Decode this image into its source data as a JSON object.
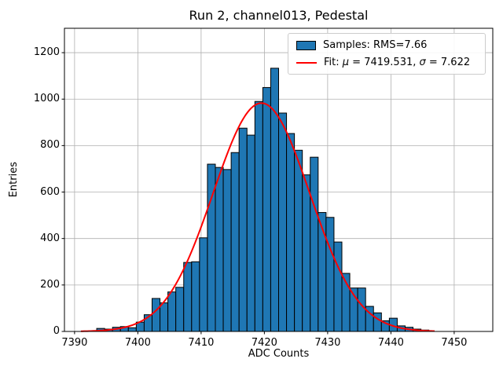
{
  "figure": {
    "title": "Run 2, channel013, Pedestal"
  },
  "chart_data": {
    "type": "bar",
    "subtype": "histogram",
    "title": "Run 2, channel013, Pedestal",
    "xlabel": "ADC Counts",
    "ylabel": "Entries",
    "grid": true,
    "legend_position": "upper right",
    "bar_color": "#1f77b4",
    "bar_edge_color": "#000000",
    "grid_color": "#b0b0b0",
    "axes_edge_color": "#000000",
    "xlim": [
      7388.4,
      7456.1
    ],
    "ylim": [
      0,
      1305
    ],
    "xticks": [
      7390,
      7400,
      7410,
      7420,
      7430,
      7440,
      7450
    ],
    "yticks": [
      0,
      200,
      400,
      600,
      800,
      1000,
      1200
    ],
    "bin_start": 7393.5,
    "bin_width": 1.25,
    "values": [
      13,
      10,
      18,
      21,
      16,
      40,
      72,
      142,
      123,
      170,
      190,
      297,
      300,
      403,
      720,
      706,
      697,
      770,
      875,
      845,
      990,
      1050,
      1133,
      940,
      852,
      780,
      674,
      750,
      512,
      491,
      385,
      250,
      187,
      187,
      108,
      80,
      46,
      57,
      24,
      18,
      10,
      6
    ],
    "fit": {
      "type": "gaussian",
      "mu": 7419.531,
      "sigma": 7.622,
      "amplitude": 983,
      "color": "#ff0000",
      "line_width": 2,
      "x_range": [
        7391.0,
        7446.9
      ]
    },
    "legend": {
      "samples_label": "Samples: RMS=7.66",
      "fit_label": {
        "prefix": "Fit: ",
        "mu_symbol": "μ",
        "mu_value": " = 7419.531, ",
        "sigma_symbol": "σ",
        "sigma_value": " = 7.622"
      }
    }
  }
}
